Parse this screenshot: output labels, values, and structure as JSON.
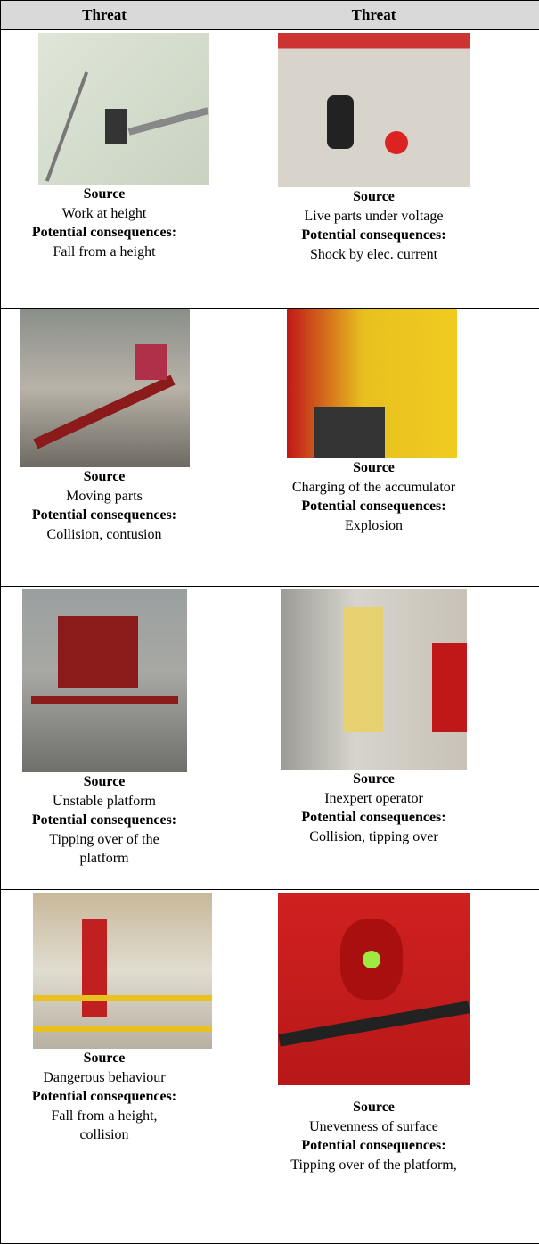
{
  "header": [
    "Threat",
    "Threat"
  ],
  "rows": [
    [
      {
        "source_label": "Source",
        "source": "Work at height",
        "consequences_label": "Potential consequences:",
        "consequences": "Fall from a height"
      },
      {
        "source_label": "Source",
        "source": "Live parts under voltage",
        "consequences_label": "Potential consequences:",
        "consequences": "Shock by elec. current"
      }
    ],
    [
      {
        "source_label": "Source",
        "source": "Moving parts",
        "consequences_label": "Potential consequences:",
        "consequences": "Collision, contusion"
      },
      {
        "source_label": "Source",
        "source": "Charging of the accumulator",
        "consequences_label": "Potential consequences:",
        "consequences": "Explosion"
      }
    ],
    [
      {
        "source_label": "Source",
        "source": "Unstable platform",
        "consequences_label": "Potential consequences:",
        "consequences": "Tipping over of the platform"
      },
      {
        "source_label": "Source",
        "source": "Inexpert operator",
        "consequences_label": "Potential consequences:",
        "consequences": "Collision, tipping over"
      }
    ],
    [
      {
        "source_label": "Source",
        "source": "Dangerous behaviour",
        "consequences_label": "Potential consequences:",
        "consequences": "Fall from a height, collision"
      },
      {
        "source_label": "Source",
        "source": "Unevenness of surface",
        "consequences_label": "Potential consequences:",
        "consequences": "Tipping over of the platform,"
      }
    ]
  ]
}
